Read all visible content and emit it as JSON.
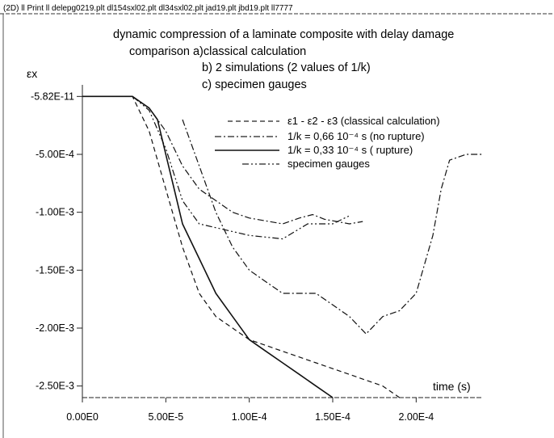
{
  "window_title": "(2D) ll Print ll delepg0219.plt dl154sxl02.plt dl34sxl02.plt jad19.plt jbd19.plt ll7777",
  "chart_data": {
    "type": "line",
    "title_lines": [
      "dynamic compression of a laminate composite with delay damage",
      "comparison a)classical calculation",
      "b) 2 simulations (2 values of 1/k)",
      "c) specimen gauges"
    ],
    "xlabel": "time (s)",
    "ylabel": "εx",
    "xlim": [
      0,
      0.00024
    ],
    "ylim": [
      -0.0026,
      0.0001
    ],
    "x_ticks": [
      0,
      5e-05,
      0.0001,
      0.00015,
      0.0002
    ],
    "x_tick_labels": [
      "0.00E0",
      "5.00E-5",
      "1.00E-4",
      "1.50E-4",
      "2.00E-4"
    ],
    "y_ticks": [
      0,
      -0.0005,
      -0.001,
      -0.0015,
      -0.002,
      -0.0025
    ],
    "y_tick_labels": [
      "-5.82E-11",
      "-5.00E-4",
      "-1.00E-3",
      "-1.50E-3",
      "-2.00E-3",
      "-2.50E-3"
    ],
    "grid": false,
    "legend_position": "upper-right",
    "legend": [
      "ε1 - ε2 - ε3 (classical calculation)",
      "1/k = 0,66 10⁻⁴ s (no rupture)",
      "1/k = 0,33 10⁻⁴ s ( rupture)",
      "specimen gauges"
    ],
    "series": [
      {
        "name": "ε1 - ε2 - ε3 (classical calculation)",
        "style": "dashed",
        "points": [
          [
            0,
            0
          ],
          [
            3e-05,
            0
          ],
          [
            4e-05,
            -0.0003
          ],
          [
            5e-05,
            -0.0008
          ],
          [
            6e-05,
            -0.0013
          ],
          [
            7e-05,
            -0.0017
          ],
          [
            8e-05,
            -0.0019
          ],
          [
            0.0001,
            -0.0021
          ],
          [
            0.00012,
            -0.0022
          ],
          [
            0.00014,
            -0.0023
          ],
          [
            0.00016,
            -0.0024
          ],
          [
            0.00018,
            -0.0025
          ],
          [
            0.00019,
            -0.0026
          ]
        ]
      },
      {
        "name": "1/k = 0,66 10⁻⁴ s (no rupture)",
        "style": "dash-dot",
        "points": [
          [
            0,
            0
          ],
          [
            3e-05,
            0
          ],
          [
            4e-05,
            -0.0001
          ],
          [
            5e-05,
            -0.0003
          ],
          [
            6e-05,
            -0.0006
          ],
          [
            7e-05,
            -0.0008
          ],
          [
            8e-05,
            -0.0009
          ],
          [
            9e-05,
            -0.001
          ],
          [
            0.0001,
            -0.00105
          ],
          [
            0.00012,
            -0.0011
          ],
          [
            0.00013,
            -0.00105
          ],
          [
            0.000138,
            -0.00102
          ],
          [
            0.000145,
            -0.00106
          ],
          [
            0.00016,
            -0.0011
          ],
          [
            0.000168,
            -0.00108
          ]
        ]
      },
      {
        "name": "1/k = 0,33 10⁻⁴ s ( rupture)",
        "style": "solid",
        "points": [
          [
            0,
            0
          ],
          [
            3e-05,
            0
          ],
          [
            4e-05,
            -0.0001
          ],
          [
            4.5e-05,
            -0.0002
          ],
          [
            5e-05,
            -0.0005
          ],
          [
            5.5e-05,
            -0.0008
          ],
          [
            6e-05,
            -0.0011
          ],
          [
            7e-05,
            -0.0014
          ],
          [
            8e-05,
            -0.0017
          ],
          [
            9e-05,
            -0.0019
          ],
          [
            0.0001,
            -0.0021
          ],
          [
            0.00011,
            -0.0022
          ],
          [
            0.00012,
            -0.0023
          ],
          [
            0.00013,
            -0.0024
          ],
          [
            0.00014,
            -0.0025
          ],
          [
            0.00015,
            -0.0026
          ]
        ]
      },
      {
        "name": "specimen gauges",
        "style": "dash-dot-dot",
        "points": [
          [
            0,
            0
          ],
          [
            3e-05,
            0
          ],
          [
            4e-05,
            -0.00012
          ],
          [
            5e-05,
            -0.00045
          ],
          [
            6e-05,
            -0.0009
          ],
          [
            7e-05,
            -0.0011
          ],
          [
            0.0001,
            -0.0012
          ],
          [
            0.00012,
            -0.00123
          ],
          [
            0.000135,
            -0.0011
          ],
          [
            0.00014,
            -0.0011
          ],
          [
            0.00015,
            -0.0011
          ],
          [
            0.00016,
            -0.00103
          ]
        ]
      },
      {
        "name": "",
        "style": "dash-dot",
        "points": [
          [
            6e-05,
            -0.0002
          ],
          [
            7e-05,
            -0.0006
          ],
          [
            8e-05,
            -0.001
          ],
          [
            9e-05,
            -0.0013
          ],
          [
            0.0001,
            -0.0015
          ],
          [
            0.00011,
            -0.0016
          ],
          [
            0.00012,
            -0.0017
          ],
          [
            0.00014,
            -0.0017
          ],
          [
            0.00015,
            -0.0018
          ],
          [
            0.00016,
            -0.0019
          ],
          [
            0.00017,
            -0.00205
          ],
          [
            0.00018,
            -0.0019
          ],
          [
            0.00019,
            -0.00185
          ],
          [
            0.0002,
            -0.0017
          ],
          [
            0.00021,
            -0.0012
          ],
          [
            0.000215,
            -0.0008
          ],
          [
            0.00022,
            -0.00055
          ],
          [
            0.00023,
            -0.0005
          ],
          [
            0.00024,
            -0.0005
          ]
        ]
      }
    ]
  }
}
